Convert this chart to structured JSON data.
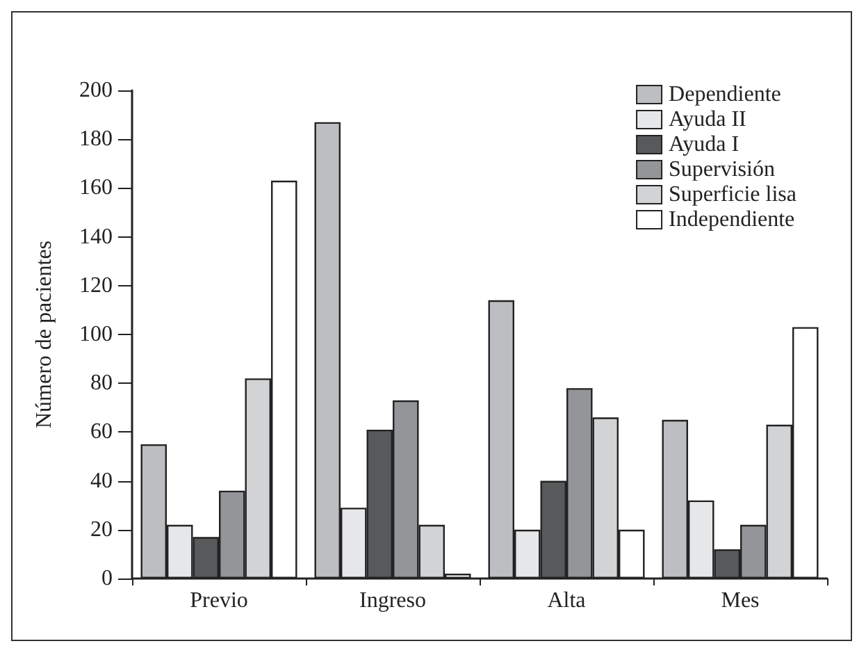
{
  "chart_data": {
    "type": "bar",
    "ylabel": "Número de pacientes",
    "categories": [
      "Previo",
      "Ingreso",
      "Alta",
      "Mes"
    ],
    "series": [
      {
        "name": "Dependiente",
        "color": "#bdbec2",
        "values": [
          55,
          187,
          114,
          65
        ]
      },
      {
        "name": "Ayuda II",
        "color": "#e6e7e8",
        "values": [
          22,
          29,
          20,
          32
        ]
      },
      {
        "name": "Ayuda I",
        "color": "#58595b",
        "values": [
          17,
          61,
          40,
          12
        ]
      },
      {
        "name": "Supervisión",
        "color": "#939598",
        "values": [
          36,
          73,
          78,
          22
        ]
      },
      {
        "name": "Superficie lisa",
        "color": "#d1d3d4",
        "values": [
          82,
          22,
          66,
          63
        ]
      },
      {
        "name": "Independiente",
        "color": "#ffffff",
        "values": [
          163,
          2,
          20,
          103
        ]
      }
    ],
    "ylim": [
      0,
      200
    ],
    "yticks": [
      0,
      20,
      40,
      60,
      80,
      100,
      120,
      140,
      160,
      180,
      200
    ],
    "grid": false,
    "legend": "top right"
  }
}
